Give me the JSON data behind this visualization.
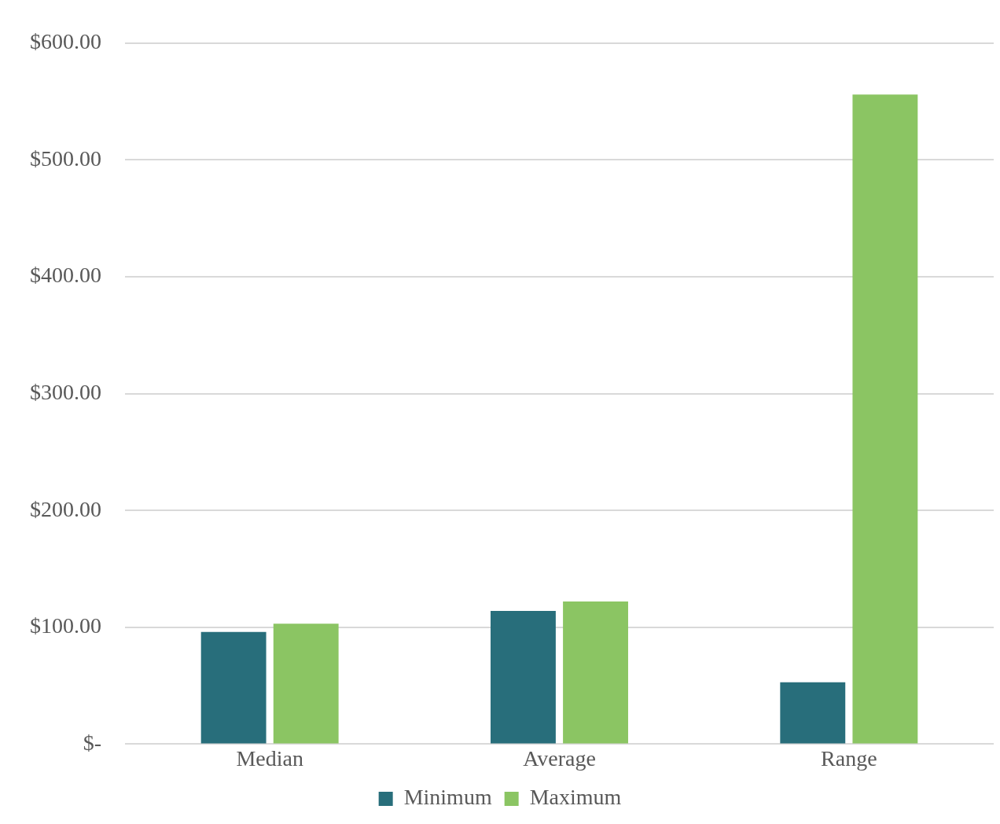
{
  "chart_data": {
    "type": "bar",
    "categories": [
      "Median",
      "Average",
      "Range"
    ],
    "series": [
      {
        "name": "Minimum",
        "color": "#286e7b",
        "values": [
          96,
          114,
          53
        ]
      },
      {
        "name": "Maximum",
        "color": "#8bc563",
        "values": [
          103,
          122,
          556
        ]
      }
    ],
    "ylim": [
      0,
      600
    ],
    "yticks": [
      {
        "value": 0,
        "label": "$-"
      },
      {
        "value": 100,
        "label": "$100.00"
      },
      {
        "value": 200,
        "label": "$200.00"
      },
      {
        "value": 300,
        "label": "$300.00"
      },
      {
        "value": 400,
        "label": "$400.00"
      },
      {
        "value": 500,
        "label": "$500.00"
      },
      {
        "value": 600,
        "label": "$600.00"
      }
    ],
    "grid": "y",
    "legend": "bottom"
  }
}
